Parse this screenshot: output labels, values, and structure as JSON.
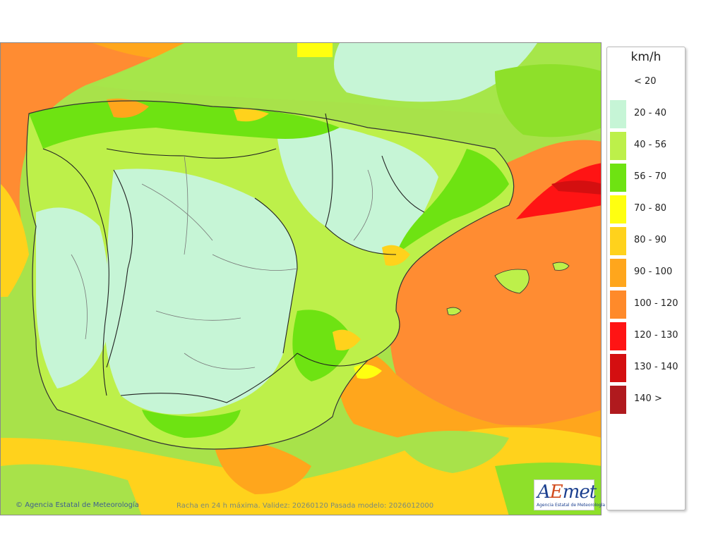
{
  "legend": {
    "title": "km/h",
    "items": [
      {
        "label": "< 20",
        "color": "#ffffff"
      },
      {
        "label": "20 - 40",
        "color": "#c6f5d6"
      },
      {
        "label": "40 - 56",
        "color": "#bdf04a"
      },
      {
        "label": "56 - 70",
        "color": "#6ee312"
      },
      {
        "label": "70 - 80",
        "color": "#ffff10"
      },
      {
        "label": "80 - 90",
        "color": "#ffd21c"
      },
      {
        "label": "90 - 100",
        "color": "#ffa61c"
      },
      {
        "label": "100 - 120",
        "color": "#ff8a2a"
      },
      {
        "label": "120 - 130",
        "color": "#ff1414"
      },
      {
        "label": "130 - 140",
        "color": "#d40f10"
      },
      {
        "label": "140 >",
        "color": "#b01a1e"
      }
    ]
  },
  "credits": {
    "left": "Agencia Estatal de Meteorología",
    "center": "Racha en 24 h máxima. Validez: 20260120 Pasada modelo: 2026012000"
  },
  "logo": {
    "wordmark_a": "A",
    "wordmark_e": "E",
    "wordmark_rest": "met",
    "subtitle": "Agencia Estatal de Meteorología"
  }
}
